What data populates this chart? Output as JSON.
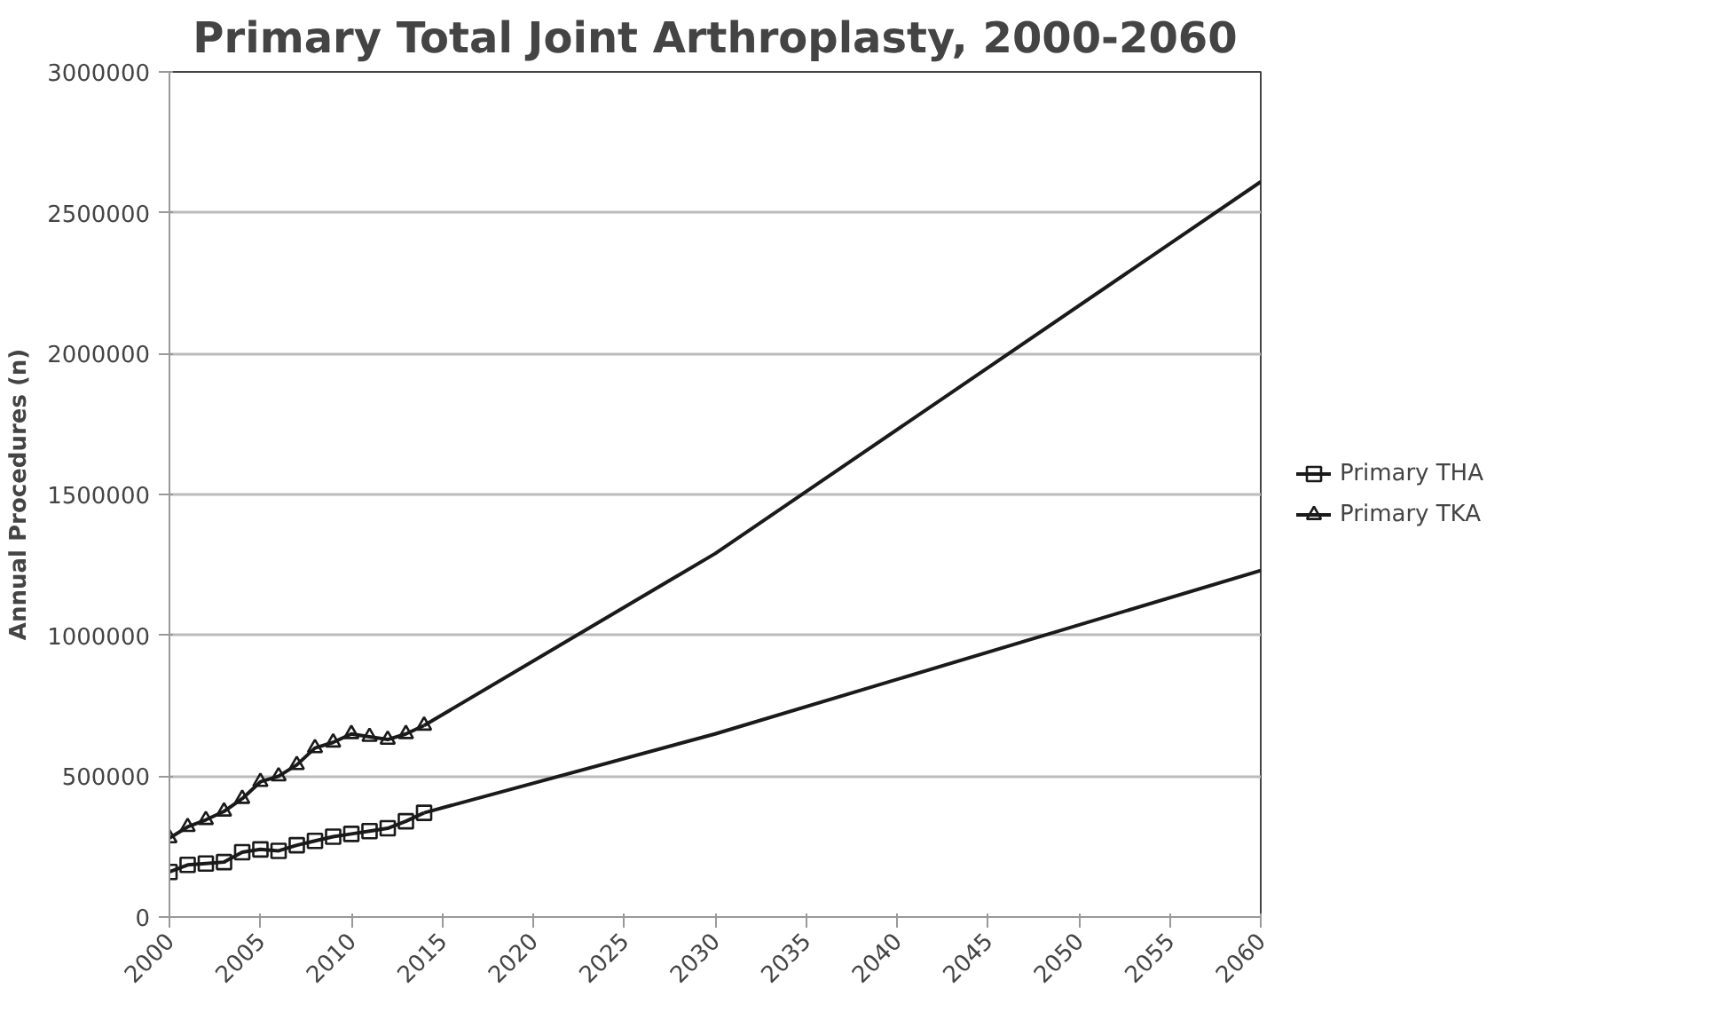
{
  "chart_data": {
    "type": "line",
    "title": "Primary Total Joint Arthroplasty, 2000-2060",
    "ylabel": "Annual Procedures (n)",
    "xlim": [
      2000,
      2060
    ],
    "xticks": [
      2000,
      2005,
      2010,
      2015,
      2020,
      2025,
      2030,
      2035,
      2040,
      2045,
      2050,
      2055,
      2060
    ],
    "ylim": [
      0,
      3000000
    ],
    "yticks": [
      0,
      500000,
      1000000,
      1500000,
      2000000,
      2500000,
      3000000
    ],
    "grid": "y",
    "legend": "right",
    "series": [
      {
        "name": "Primary THA",
        "color": "#1a1a1a",
        "marker": "square",
        "x": [
          2000,
          2001,
          2002,
          2003,
          2004,
          2005,
          2006,
          2007,
          2008,
          2009,
          2010,
          2011,
          2012,
          2013,
          2014
        ],
        "values": [
          160000,
          185000,
          190000,
          195000,
          230000,
          240000,
          235000,
          255000,
          270000,
          285000,
          295000,
          305000,
          315000,
          340000,
          370000
        ]
      },
      {
        "name": "Primary TKA",
        "color": "#1a1a1a",
        "marker": "triangle",
        "x": [
          2000,
          2001,
          2002,
          2003,
          2004,
          2005,
          2006,
          2007,
          2008,
          2009,
          2010,
          2011,
          2012,
          2013,
          2014
        ],
        "values": [
          280000,
          320000,
          345000,
          375000,
          420000,
          480000,
          500000,
          540000,
          600000,
          620000,
          650000,
          640000,
          630000,
          650000,
          680000
        ]
      },
      {
        "color": "#1a1a1a",
        "marker": "none",
        "x": [
          2014,
          2030,
          2060
        ],
        "values": [
          370000,
          650000,
          1230000
        ]
      },
      {
        "color": "#1a1a1a",
        "marker": "none",
        "x": [
          2014,
          2030,
          2060
        ],
        "values": [
          680000,
          1290000,
          2610000
        ]
      }
    ]
  }
}
